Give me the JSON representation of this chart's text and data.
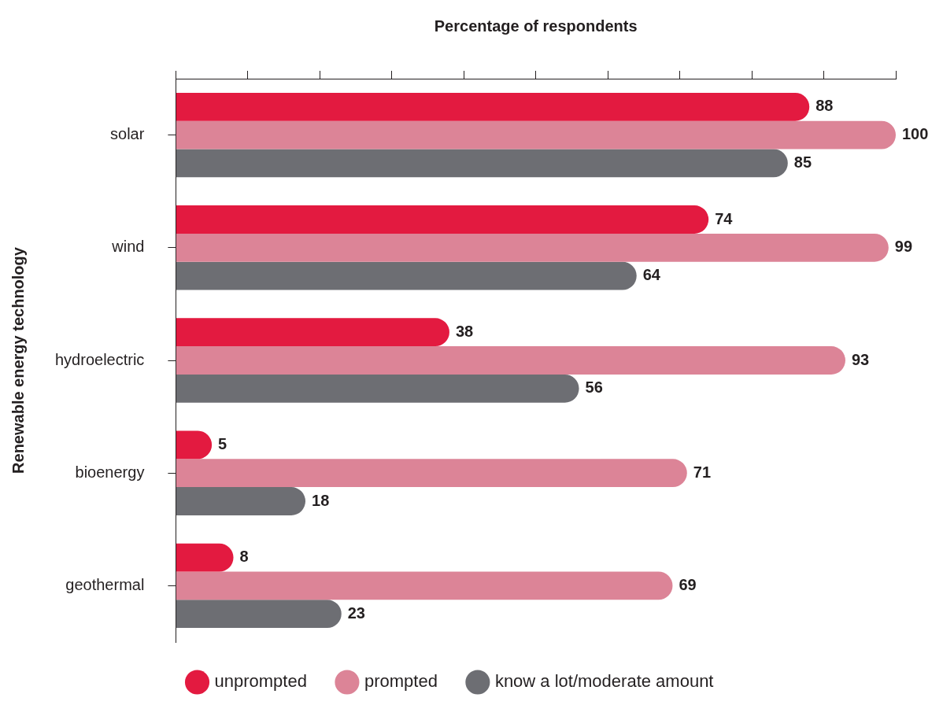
{
  "chart_data": {
    "type": "bar",
    "orientation": "horizontal",
    "xlabel": "Percentage of respondents",
    "ylabel": "Renewable energy technology",
    "categories": [
      "solar",
      "wind",
      "hydroelectric",
      "bioenergy",
      "geothermal"
    ],
    "series": [
      {
        "name": "unprompted",
        "color": "#e31a40",
        "values": [
          88,
          74,
          38,
          5,
          8
        ]
      },
      {
        "name": "prompted",
        "color": "#dc8497",
        "values": [
          100,
          99,
          93,
          71,
          69
        ]
      },
      {
        "name": "know a lot/moderate amount",
        "color": "#6d6e73",
        "values": [
          85,
          64,
          56,
          18,
          23
        ]
      }
    ],
    "xlim": [
      0,
      100
    ],
    "xticks": [
      {
        "value": 0,
        "label": null
      },
      {
        "value": 10,
        "label": null
      },
      {
        "value": 20,
        "label": null
      },
      {
        "value": 30,
        "label": null
      },
      {
        "value": 40,
        "label": null
      },
      {
        "value": 50,
        "label": null
      },
      {
        "value": 60,
        "label": null
      },
      {
        "value": 70,
        "label": null
      },
      {
        "value": 80,
        "label": null
      },
      {
        "value": 90,
        "label": null
      },
      {
        "value": 100,
        "label": null
      }
    ],
    "tick_labels": "y",
    "grid": false,
    "legend": "bottom",
    "data_labels": true
  }
}
